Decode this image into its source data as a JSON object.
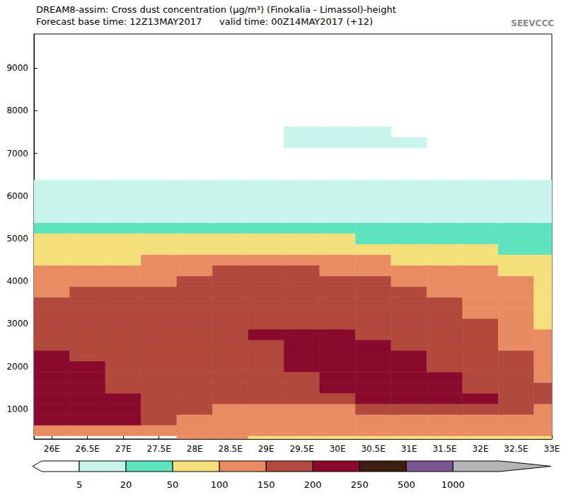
{
  "chart_data": {
    "type": "heatmap",
    "title": "DREAM8-assim: Cross dust concentration (μg/m³) (Finokalia - Limassol)-height",
    "subtitle": "Forecast base time: 12Z13MAY2017      valid time: 00Z14MAY2017 (+12)",
    "annotations": [
      "SEEVCCC"
    ],
    "grid": false,
    "xlim": [
      25.75,
      33
    ],
    "xticks": [
      {
        "value": 26,
        "label": "26E"
      },
      {
        "value": 26.5,
        "label": "26.5E"
      },
      {
        "value": 27,
        "label": "27E"
      },
      {
        "value": 27.5,
        "label": "27.5E"
      },
      {
        "value": 28,
        "label": "28E"
      },
      {
        "value": 28.5,
        "label": "28.5E"
      },
      {
        "value": 29,
        "label": "29E"
      },
      {
        "value": 29.5,
        "label": "29.5E"
      },
      {
        "value": 30,
        "label": "30E"
      },
      {
        "value": 30.5,
        "label": "30.5E"
      },
      {
        "value": 31,
        "label": "31E"
      },
      {
        "value": 31.5,
        "label": "31.5E"
      },
      {
        "value": 32,
        "label": "32E"
      },
      {
        "value": 32.5,
        "label": "32.5E"
      },
      {
        "value": 33,
        "label": "33E"
      }
    ],
    "ylim": [
      300,
      9800
    ],
    "yticks": [
      1000,
      2000,
      3000,
      4000,
      5000,
      6000,
      7000,
      8000,
      9000
    ],
    "x": [
      26,
      26.5,
      27,
      27.5,
      28,
      28.5,
      29,
      29.5,
      30,
      30.5,
      31,
      31.5,
      32,
      32.5,
      33
    ],
    "y": [
      250,
      500,
      750,
      1000,
      1250,
      1500,
      1750,
      2000,
      2250,
      2500,
      2750,
      3000,
      3250,
      3500,
      3750,
      4000,
      4250,
      4500,
      4750,
      5000,
      5250,
      5500,
      5750,
      6000,
      6250,
      6500,
      6750,
      7000,
      7250,
      7500
    ],
    "z": [
      [
        0,
        125,
        225,
        225,
        225,
        225,
        225,
        225,
        225,
        175,
        175,
        175,
        175,
        175,
        125,
        125,
        125,
        75,
        75,
        75,
        35,
        12,
        12,
        12,
        12,
        0,
        0,
        0,
        0,
        0
      ],
      [
        0,
        125,
        225,
        225,
        225,
        225,
        225,
        225,
        175,
        175,
        175,
        175,
        175,
        175,
        175,
        125,
        125,
        75,
        75,
        75,
        35,
        12,
        12,
        12,
        12,
        0,
        0,
        0,
        0,
        0
      ],
      [
        0,
        125,
        225,
        225,
        225,
        175,
        175,
        175,
        175,
        175,
        175,
        175,
        175,
        175,
        175,
        125,
        125,
        75,
        75,
        75,
        35,
        12,
        12,
        12,
        12,
        0,
        0,
        0,
        0,
        0
      ],
      [
        0,
        125,
        175,
        175,
        175,
        175,
        175,
        175,
        175,
        175,
        175,
        175,
        175,
        175,
        175,
        125,
        125,
        125,
        75,
        75,
        35,
        12,
        12,
        12,
        12,
        0,
        0,
        0,
        0,
        0
      ],
      [
        125,
        125,
        125,
        175,
        175,
        175,
        175,
        175,
        175,
        175,
        175,
        175,
        175,
        175,
        175,
        175,
        125,
        125,
        75,
        75,
        35,
        12,
        12,
        12,
        12,
        0,
        0,
        0,
        0,
        0
      ],
      [
        125,
        125,
        125,
        125,
        175,
        175,
        175,
        175,
        175,
        175,
        175,
        175,
        175,
        175,
        175,
        175,
        175,
        125,
        75,
        75,
        35,
        12,
        12,
        12,
        12,
        0,
        0,
        0,
        0,
        0
      ],
      [
        75,
        125,
        125,
        125,
        175,
        175,
        175,
        175,
        175,
        175,
        225,
        175,
        175,
        175,
        175,
        175,
        175,
        125,
        75,
        75,
        35,
        12,
        12,
        12,
        12,
        0,
        0,
        0,
        0,
        0
      ],
      [
        75,
        125,
        125,
        125,
        175,
        175,
        175,
        225,
        225,
        225,
        225,
        175,
        175,
        175,
        175,
        175,
        175,
        125,
        75,
        75,
        35,
        12,
        12,
        12,
        12,
        0,
        0,
        0,
        12,
        12
      ],
      [
        75,
        125,
        125,
        125,
        175,
        225,
        225,
        225,
        225,
        225,
        225,
        175,
        175,
        175,
        175,
        175,
        125,
        125,
        75,
        75,
        35,
        12,
        12,
        12,
        12,
        0,
        0,
        0,
        12,
        12
      ],
      [
        75,
        125,
        125,
        175,
        225,
        225,
        225,
        225,
        225,
        225,
        175,
        175,
        175,
        175,
        175,
        175,
        125,
        125,
        75,
        35,
        35,
        12,
        12,
        12,
        12,
        0,
        0,
        0,
        12,
        12
      ],
      [
        75,
        125,
        125,
        175,
        225,
        225,
        225,
        225,
        225,
        175,
        175,
        175,
        175,
        175,
        175,
        125,
        125,
        75,
        75,
        35,
        35,
        12,
        12,
        12,
        12,
        0,
        0,
        0,
        12,
        0
      ],
      [
        75,
        125,
        125,
        175,
        225,
        225,
        225,
        175,
        175,
        175,
        175,
        175,
        175,
        175,
        125,
        125,
        125,
        75,
        75,
        35,
        35,
        12,
        12,
        12,
        12,
        0,
        0,
        0,
        0,
        0
      ],
      [
        75,
        125,
        125,
        175,
        225,
        175,
        175,
        175,
        175,
        175,
        175,
        175,
        125,
        125,
        125,
        125,
        125,
        75,
        75,
        35,
        35,
        12,
        12,
        12,
        12,
        0,
        0,
        0,
        0,
        0
      ],
      [
        75,
        125,
        125,
        175,
        175,
        175,
        175,
        175,
        175,
        125,
        125,
        125,
        125,
        125,
        125,
        125,
        75,
        75,
        35,
        35,
        35,
        12,
        12,
        12,
        12,
        0,
        0,
        0,
        0,
        0
      ],
      [
        75,
        125,
        125,
        125,
        175,
        175,
        125,
        125,
        125,
        125,
        125,
        75,
        75,
        75,
        75,
        75,
        75,
        75,
        35,
        35,
        35,
        12,
        12,
        12,
        12,
        0,
        0,
        0,
        0,
        0
      ]
    ],
    "colorbar": {
      "range": [
        5,
        1000
      ],
      "ticks": [
        5,
        20,
        50,
        100,
        150,
        200,
        250,
        500,
        1000
      ],
      "colors": [
        "#c9f4ec",
        "#5ee3bf",
        "#f6e07c",
        "#e98c63",
        "#b1493c",
        "#8a0a2e",
        "#3d1f12",
        "#7b5694"
      ]
    }
  }
}
